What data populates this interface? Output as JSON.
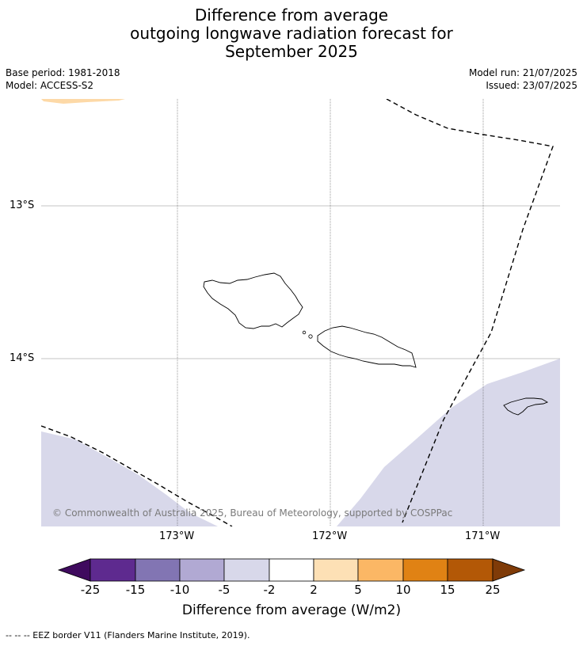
{
  "title": {
    "line1": "Difference from average",
    "line2": "outgoing longwave radiation forecast for",
    "line3": "September 2025"
  },
  "meta": {
    "base_period": "Base period: 1981-2018",
    "model": "Model: ACCESS-S2",
    "model_run": "Model run: 21/07/2025",
    "issued": "Issued: 23/07/2025"
  },
  "map": {
    "lat_labels": [
      "13°S",
      "14°S"
    ],
    "lon_labels": [
      "173°W",
      "172°W",
      "171°W"
    ],
    "copyright": "© Commonwealth of Australia 2025, Bureau of Meteorology, supported by COSPPac",
    "colors": {
      "light_purple_fill": "#d8d8ea",
      "light_orange_fill": "#fdd9a7",
      "eez_border": "#000000",
      "gridline": "#b0b0b0"
    }
  },
  "colorbar": {
    "ticks": [
      "-25",
      "-15",
      "-10",
      "-5",
      "-2",
      "2",
      "5",
      "10",
      "15",
      "25"
    ],
    "colors": [
      "#3f0a5e",
      "#5e2a8f",
      "#8275b3",
      "#b1a9d3",
      "#d8d8ea",
      "#ffffff",
      "#fde0b5",
      "#fbb765",
      "#e08214",
      "#b35806",
      "#7f3b08"
    ],
    "label": "Difference from average (W/m2)"
  },
  "footer": "--  --  -- EEZ border V11 (Flanders Marine Institute, 2019)."
}
